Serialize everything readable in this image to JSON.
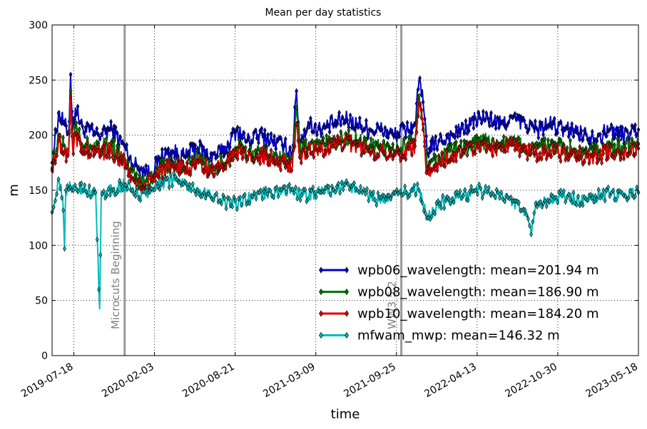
{
  "chart_data": {
    "type": "line",
    "title": "Mean per day statistics",
    "xlabel": "time",
    "ylabel": "m",
    "xlim": [
      "2019-05-25",
      "2023-05-18"
    ],
    "ylim": [
      0,
      300
    ],
    "x_ticks": [
      "2019-07-18",
      "2020-02-03",
      "2020-08-21",
      "2021-03-09",
      "2021-09-25",
      "2022-04-13",
      "2022-10-30",
      "2023-05-18"
    ],
    "y_ticks": [
      0,
      50,
      100,
      150,
      200,
      250,
      300
    ],
    "grid": true,
    "legend_position": "lower-right",
    "marker": "diamond",
    "annotations": [
      {
        "date": "2019-11-21",
        "label": "Microcuts Beginning"
      },
      {
        "date": "2021-10-07",
        "label": "WW3 5.2"
      }
    ],
    "annotation_color": "#999999",
    "series": [
      {
        "name": "wpb06_wavelength",
        "legend": "wpb06_wavelength: mean=201.94 m",
        "color": "#0000cc",
        "points": [
          [
            "2019-05-25",
            175
          ],
          [
            "2019-06-10",
            220
          ],
          [
            "2019-06-25",
            210
          ],
          [
            "2019-07-05",
            200
          ],
          [
            "2019-07-10",
            255
          ],
          [
            "2019-07-15",
            205
          ],
          [
            "2019-07-22",
            225
          ],
          [
            "2019-08-10",
            205
          ],
          [
            "2019-09-15",
            200
          ],
          [
            "2019-10-20",
            205
          ],
          [
            "2019-11-20",
            190
          ],
          [
            "2019-12-10",
            175
          ],
          [
            "2020-01-01",
            170
          ],
          [
            "2020-01-25",
            165
          ],
          [
            "2020-02-20",
            180
          ],
          [
            "2020-03-20",
            185
          ],
          [
            "2020-04-20",
            180
          ],
          [
            "2020-05-20",
            190
          ],
          [
            "2020-06-20",
            180
          ],
          [
            "2020-07-20",
            185
          ],
          [
            "2020-08-10",
            195
          ],
          [
            "2020-08-25",
            205
          ],
          [
            "2020-09-20",
            195
          ],
          [
            "2020-10-20",
            200
          ],
          [
            "2020-11-20",
            195
          ],
          [
            "2020-12-20",
            190
          ],
          [
            "2021-01-10",
            185
          ],
          [
            "2021-01-20",
            240
          ],
          [
            "2021-01-28",
            195
          ],
          [
            "2021-02-20",
            210
          ],
          [
            "2021-03-20",
            205
          ],
          [
            "2021-04-20",
            210
          ],
          [
            "2021-05-20",
            215
          ],
          [
            "2021-06-20",
            210
          ],
          [
            "2021-07-20",
            205
          ],
          [
            "2021-08-20",
            205
          ],
          [
            "2021-09-20",
            200
          ],
          [
            "2021-10-20",
            205
          ],
          [
            "2021-11-10",
            210
          ],
          [
            "2021-11-20",
            250
          ],
          [
            "2021-11-30",
            230
          ],
          [
            "2021-12-10",
            185
          ],
          [
            "2022-01-10",
            195
          ],
          [
            "2022-02-10",
            200
          ],
          [
            "2022-03-10",
            205
          ],
          [
            "2022-04-10",
            215
          ],
          [
            "2022-05-10",
            215
          ],
          [
            "2022-06-10",
            210
          ],
          [
            "2022-07-10",
            215
          ],
          [
            "2022-08-10",
            210
          ],
          [
            "2022-09-10",
            205
          ],
          [
            "2022-10-10",
            210
          ],
          [
            "2022-11-10",
            205
          ],
          [
            "2022-12-10",
            205
          ],
          [
            "2023-01-10",
            200
          ],
          [
            "2023-02-10",
            200
          ],
          [
            "2023-03-10",
            205
          ],
          [
            "2023-04-10",
            200
          ],
          [
            "2023-05-18",
            205
          ]
        ]
      },
      {
        "name": "wpb08_wavelength",
        "legend": "wpb08_wavelength: mean=186.90 m",
        "color": "#007700",
        "points": [
          [
            "2019-05-25",
            170
          ],
          [
            "2019-06-10",
            200
          ],
          [
            "2019-06-25",
            190
          ],
          [
            "2019-07-05",
            185
          ],
          [
            "2019-07-10",
            240
          ],
          [
            "2019-07-15",
            190
          ],
          [
            "2019-07-22",
            205
          ],
          [
            "2019-08-10",
            190
          ],
          [
            "2019-09-15",
            190
          ],
          [
            "2019-10-20",
            190
          ],
          [
            "2019-11-20",
            180
          ],
          [
            "2019-12-10",
            165
          ],
          [
            "2020-01-01",
            155
          ],
          [
            "2020-01-25",
            160
          ],
          [
            "2020-02-20",
            170
          ],
          [
            "2020-03-20",
            175
          ],
          [
            "2020-04-20",
            170
          ],
          [
            "2020-05-20",
            180
          ],
          [
            "2020-06-20",
            170
          ],
          [
            "2020-07-20",
            175
          ],
          [
            "2020-08-10",
            180
          ],
          [
            "2020-08-25",
            190
          ],
          [
            "2020-09-20",
            180
          ],
          [
            "2020-10-20",
            185
          ],
          [
            "2020-11-20",
            180
          ],
          [
            "2020-12-20",
            178
          ],
          [
            "2021-01-10",
            175
          ],
          [
            "2021-01-20",
            225
          ],
          [
            "2021-01-28",
            185
          ],
          [
            "2021-02-20",
            192
          ],
          [
            "2021-03-20",
            190
          ],
          [
            "2021-04-20",
            195
          ],
          [
            "2021-05-20",
            198
          ],
          [
            "2021-06-20",
            195
          ],
          [
            "2021-07-20",
            190
          ],
          [
            "2021-08-20",
            190
          ],
          [
            "2021-09-20",
            185
          ],
          [
            "2021-10-20",
            190
          ],
          [
            "2021-11-10",
            195
          ],
          [
            "2021-11-20",
            238
          ],
          [
            "2021-11-30",
            210
          ],
          [
            "2021-12-10",
            170
          ],
          [
            "2022-01-10",
            180
          ],
          [
            "2022-02-10",
            185
          ],
          [
            "2022-03-10",
            188
          ],
          [
            "2022-04-10",
            192
          ],
          [
            "2022-05-10",
            195
          ],
          [
            "2022-06-10",
            192
          ],
          [
            "2022-07-10",
            195
          ],
          [
            "2022-08-10",
            190
          ],
          [
            "2022-09-10",
            188
          ],
          [
            "2022-10-10",
            190
          ],
          [
            "2022-11-10",
            188
          ],
          [
            "2022-12-10",
            188
          ],
          [
            "2023-01-10",
            185
          ],
          [
            "2023-02-10",
            185
          ],
          [
            "2023-03-10",
            190
          ],
          [
            "2023-04-10",
            188
          ],
          [
            "2023-05-18",
            192
          ]
        ]
      },
      {
        "name": "wpb10_wavelength",
        "legend": "wpb10_wavelength: mean=184.20 m",
        "color": "#dd0000",
        "points": [
          [
            "2019-05-25",
            168
          ],
          [
            "2019-06-10",
            195
          ],
          [
            "2019-06-25",
            185
          ],
          [
            "2019-07-05",
            182
          ],
          [
            "2019-07-10",
            235
          ],
          [
            "2019-07-15",
            188
          ],
          [
            "2019-07-22",
            200
          ],
          [
            "2019-08-10",
            185
          ],
          [
            "2019-09-15",
            185
          ],
          [
            "2019-10-20",
            185
          ],
          [
            "2019-11-20",
            175
          ],
          [
            "2019-12-10",
            160
          ],
          [
            "2020-01-01",
            152
          ],
          [
            "2020-01-25",
            160
          ],
          [
            "2020-02-20",
            168
          ],
          [
            "2020-03-20",
            172
          ],
          [
            "2020-04-20",
            168
          ],
          [
            "2020-05-20",
            176
          ],
          [
            "2020-06-20",
            168
          ],
          [
            "2020-07-20",
            172
          ],
          [
            "2020-08-10",
            178
          ],
          [
            "2020-08-25",
            186
          ],
          [
            "2020-09-20",
            178
          ],
          [
            "2020-10-20",
            182
          ],
          [
            "2020-11-20",
            178
          ],
          [
            "2020-12-20",
            175
          ],
          [
            "2021-01-10",
            172
          ],
          [
            "2021-01-20",
            210
          ],
          [
            "2021-01-28",
            180
          ],
          [
            "2021-02-20",
            188
          ],
          [
            "2021-03-20",
            186
          ],
          [
            "2021-04-20",
            190
          ],
          [
            "2021-05-20",
            194
          ],
          [
            "2021-06-20",
            190
          ],
          [
            "2021-07-20",
            186
          ],
          [
            "2021-08-20",
            186
          ],
          [
            "2021-09-20",
            182
          ],
          [
            "2021-10-20",
            186
          ],
          [
            "2021-11-10",
            190
          ],
          [
            "2021-11-20",
            232
          ],
          [
            "2021-11-30",
            205
          ],
          [
            "2021-12-10",
            165
          ],
          [
            "2022-01-10",
            176
          ],
          [
            "2022-02-10",
            182
          ],
          [
            "2022-03-10",
            185
          ],
          [
            "2022-04-10",
            188
          ],
          [
            "2022-05-10",
            190
          ],
          [
            "2022-06-10",
            188
          ],
          [
            "2022-07-10",
            190
          ],
          [
            "2022-08-10",
            186
          ],
          [
            "2022-09-10",
            184
          ],
          [
            "2022-10-10",
            186
          ],
          [
            "2022-11-10",
            184
          ],
          [
            "2022-12-10",
            184
          ],
          [
            "2023-01-10",
            180
          ],
          [
            "2023-02-10",
            182
          ],
          [
            "2023-03-10",
            186
          ],
          [
            "2023-04-10",
            184
          ],
          [
            "2023-05-18",
            188
          ]
        ]
      },
      {
        "name": "mfwam_mwp",
        "legend": "mfwam_mwp: mean=146.32 m",
        "color": "#00bbbb",
        "points": [
          [
            "2019-05-25",
            130
          ],
          [
            "2019-06-10",
            160
          ],
          [
            "2019-06-20",
            145
          ],
          [
            "2019-06-25",
            97
          ],
          [
            "2019-06-28",
            150
          ],
          [
            "2019-07-15",
            155
          ],
          [
            "2019-08-10",
            150
          ],
          [
            "2019-09-10",
            148
          ],
          [
            "2019-09-20",
            42
          ],
          [
            "2019-09-24",
            148
          ],
          [
            "2019-10-20",
            150
          ],
          [
            "2019-11-20",
            155
          ],
          [
            "2019-12-10",
            150
          ],
          [
            "2020-01-01",
            145
          ],
          [
            "2020-01-25",
            150
          ],
          [
            "2020-02-20",
            155
          ],
          [
            "2020-03-20",
            160
          ],
          [
            "2020-04-20",
            155
          ],
          [
            "2020-05-20",
            150
          ],
          [
            "2020-06-20",
            145
          ],
          [
            "2020-07-20",
            140
          ],
          [
            "2020-08-20",
            138
          ],
          [
            "2020-09-20",
            142
          ],
          [
            "2020-10-20",
            148
          ],
          [
            "2020-11-20",
            145
          ],
          [
            "2020-12-20",
            150
          ],
          [
            "2021-01-20",
            148
          ],
          [
            "2021-02-20",
            145
          ],
          [
            "2021-03-20",
            150
          ],
          [
            "2021-04-20",
            148
          ],
          [
            "2021-05-20",
            155
          ],
          [
            "2021-06-20",
            150
          ],
          [
            "2021-07-20",
            145
          ],
          [
            "2021-08-20",
            140
          ],
          [
            "2021-09-20",
            145
          ],
          [
            "2021-10-20",
            148
          ],
          [
            "2021-11-20",
            150
          ],
          [
            "2021-12-10",
            125
          ],
          [
            "2022-01-10",
            138
          ],
          [
            "2022-02-10",
            142
          ],
          [
            "2022-03-10",
            145
          ],
          [
            "2022-04-10",
            150
          ],
          [
            "2022-05-10",
            148
          ],
          [
            "2022-06-10",
            145
          ],
          [
            "2022-07-10",
            140
          ],
          [
            "2022-08-10",
            132
          ],
          [
            "2022-08-25",
            110
          ],
          [
            "2022-09-05",
            138
          ],
          [
            "2022-10-10",
            140
          ],
          [
            "2022-11-10",
            145
          ],
          [
            "2022-12-10",
            142
          ],
          [
            "2023-01-10",
            140
          ],
          [
            "2023-02-10",
            145
          ],
          [
            "2023-03-10",
            148
          ],
          [
            "2023-04-10",
            145
          ],
          [
            "2023-05-18",
            148
          ]
        ]
      }
    ]
  }
}
